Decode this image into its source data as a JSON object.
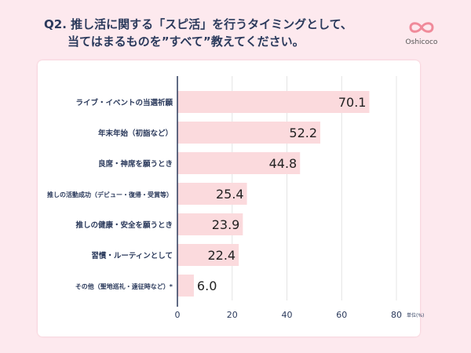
{
  "header": {
    "title_line1": "Q2. 推し活に関する「スピ活」を行うタイミングとして、",
    "title_line2": "当てはまるものを”すべて”教えてください。",
    "logo_text": "Oshicoco"
  },
  "chart_data": {
    "type": "bar",
    "orientation": "horizontal",
    "categories": [
      "ライブ・イベントの当選祈願",
      "年末年始（初詣など）",
      "良席・神席を願うとき",
      "推しの活動成功（デビュー・復帰・受賞等）",
      "推しの健康・安全を願うとき",
      "習慣・ルーティンとして",
      "その他（聖地巡礼・遠征時など）*"
    ],
    "values": [
      70.1,
      52.2,
      44.8,
      25.4,
      23.9,
      22.4,
      6.0
    ],
    "xlim": [
      0,
      80
    ],
    "xticks": [
      0,
      20,
      40,
      60,
      80
    ],
    "unit_label": "単位(%)",
    "grid": true,
    "colors": {
      "bar": "#fbdadd",
      "axis": "#2b3a5c",
      "text": "#2b3a5c"
    }
  }
}
